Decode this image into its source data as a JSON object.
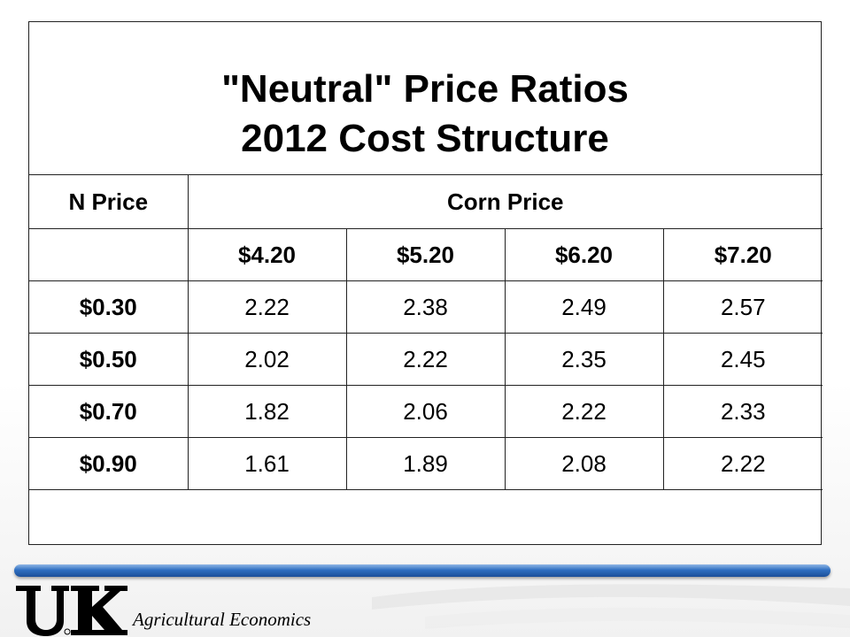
{
  "title": {
    "line1": "\"Neutral\" Price Ratios",
    "line2": "2012 Cost Structure"
  },
  "table": {
    "n_price_header": "N Price",
    "corn_price_header": "Corn Price",
    "corn_prices": [
      "$4.20",
      "$5.20",
      "$6.20",
      "$7.20"
    ],
    "rows": [
      {
        "n_price": "$0.30",
        "values": [
          "2.22",
          "2.38",
          "2.49",
          "2.57"
        ]
      },
      {
        "n_price": "$0.50",
        "values": [
          "2.02",
          "2.22",
          "2.35",
          "2.45"
        ]
      },
      {
        "n_price": "$0.70",
        "values": [
          "1.82",
          "2.06",
          "2.22",
          "2.33"
        ]
      },
      {
        "n_price": "$0.90",
        "values": [
          "1.61",
          "1.89",
          "2.08",
          "2.22"
        ]
      }
    ]
  },
  "footer": {
    "logo_text": "UK",
    "department": "Agricultural Economics",
    "bar_color": "#2f6fc1"
  }
}
